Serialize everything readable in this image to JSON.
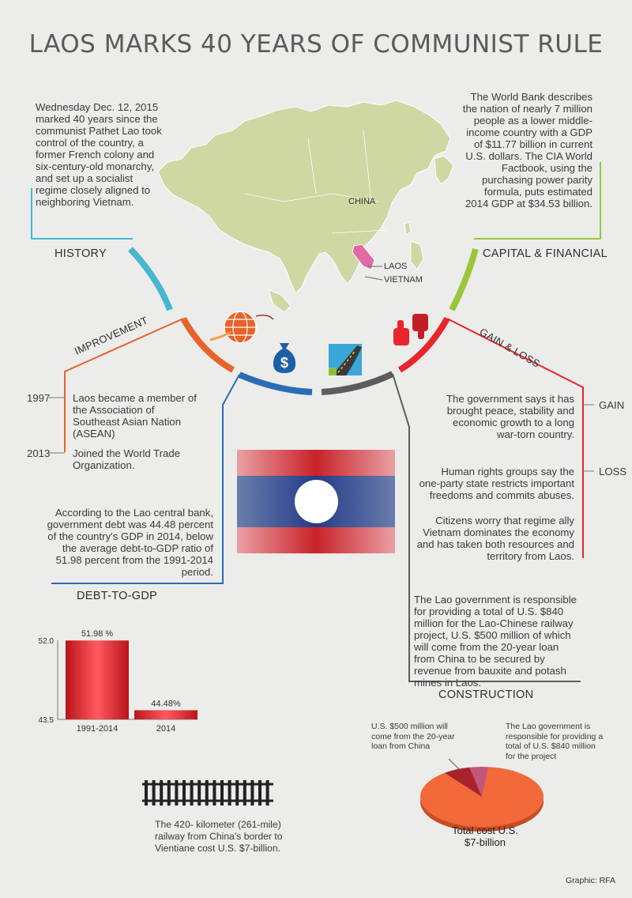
{
  "title": "LAOS MARKS 40 YEARS OF COMMUNIST RULE",
  "history": {
    "label": "HISTORY",
    "text": "Wednesday Dec. 12, 2015 marked 40 years since the communist Pathet Lao took control of the country, a former French colony and six-century-old monarchy, and set up a socialist regime closely aligned to neighboring Vietnam."
  },
  "capital": {
    "label": "CAPITAL & FINANCIAL",
    "text": "The World Bank describes the nation of nearly 7 million people as a lower middle-income country with a GDP of $11.77 billion in current U.S. dollars.  The CIA World Factbook, using the purchasing power parity formula, puts estimated 2014 GDP at $34.53 billion."
  },
  "map": {
    "china": "CHINA",
    "laos": "LAOS",
    "vietnam": "VIETNAM"
  },
  "improvement": {
    "label": "IMPROVEMENT",
    "items": [
      {
        "year": "1997",
        "text": "Laos became a member of the Association of Southeast Asian Nation (ASEAN)"
      },
      {
        "year": "2013",
        "text": "Joined the World Trade Organization."
      }
    ]
  },
  "gain_loss": {
    "label": "GAIN & LOSS",
    "gain_label": "GAIN",
    "loss_label": "LOSS",
    "gain_text": "The government says it has brought peace, stability and economic growth to a long war-torn country.",
    "loss_text1": "Human rights groups say the one-party state restricts important freedoms and commits abuses.",
    "loss_text2": "Citizens worry that regime ally Vietnam dominates the economy and has taken both resources and territory from Laos."
  },
  "debt": {
    "label": "DEBT-TO-GDP",
    "text": "According to the Lao central bank, government debt was 44.48 percent of the country's GDP in 2014, below the average debt-to-GDP ratio of 51.98 percent from the 1991-2014 period."
  },
  "construction": {
    "label": "CONSTRUCTION",
    "text": "The Lao government is responsible for providing a total of U.S. $840 million for the Lao-Chinese railway project, U.S. $500 million of which will come from the 20-year loan from China to be secured by revenue from bauxite and potash mines in Laos."
  },
  "chart_data": [
    {
      "type": "bar",
      "categories": [
        "1991-2014",
        "2014"
      ],
      "values": [
        51.98,
        44.48
      ],
      "data_labels": [
        "51.98 %",
        "44.48%"
      ],
      "ylim": [
        43.5,
        52.0
      ],
      "y_ticks": [
        "52.0",
        "43.5"
      ],
      "title": "",
      "xlabel": "",
      "ylabel": "",
      "bar_color": "#e8262c"
    },
    {
      "type": "pie",
      "slices": [
        {
          "label": "U.S. $500 million will come from the 20-year loan from China",
          "value": 500,
          "color": "#a8232b"
        },
        {
          "label": "The Lao government is responsible for providing a total of U.S. $840 million for the project",
          "value": 340,
          "color": "#c2577a"
        },
        {
          "label": "",
          "value": 6160,
          "color": "#f26a3a"
        }
      ],
      "total_label": "Total cost U.S. $7-billion"
    }
  ],
  "railway": {
    "text": "The 420- kilometer (261-mile) railway from China's border to Vientiane cost U.S. $7-billion."
  },
  "credit": "Graphic: RFA"
}
